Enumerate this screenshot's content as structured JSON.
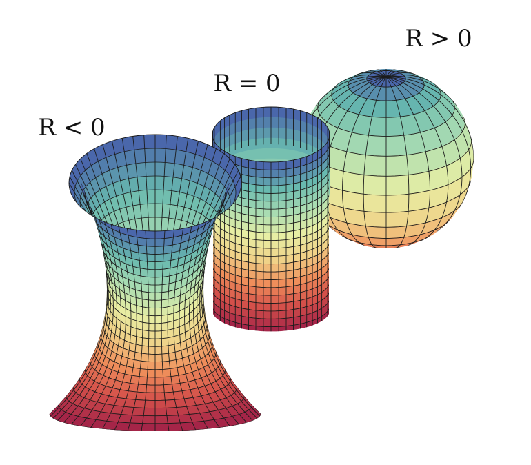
{
  "figure": {
    "labels": {
      "hyperboloid": "R < 0",
      "cylinder": "R = 0",
      "sphere": "R > 0"
    },
    "surfaces": [
      {
        "id": "hyperboloid",
        "shape": "hyperboloid of one sheet",
        "curvature_sign": "negative"
      },
      {
        "id": "cylinder",
        "shape": "cylinder",
        "curvature_sign": "zero"
      },
      {
        "id": "sphere",
        "shape": "sphere",
        "curvature_sign": "positive"
      }
    ],
    "colormap": {
      "name": "spectral",
      "stops": [
        "#4a67ab",
        "#68b9af",
        "#a9dcb2",
        "#e7eea4",
        "#f0d288",
        "#ef8e5b",
        "#d4504a",
        "#a52548"
      ]
    },
    "grid_color": "#1b1b1b",
    "background": "#ffffff"
  }
}
